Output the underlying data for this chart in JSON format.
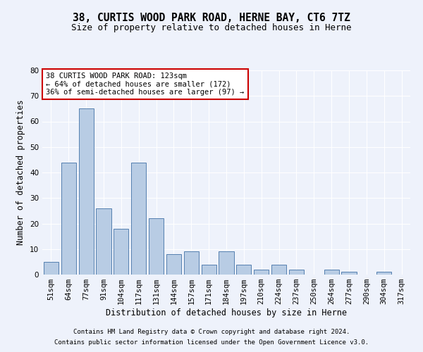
{
  "title1": "38, CURTIS WOOD PARK ROAD, HERNE BAY, CT6 7TZ",
  "title2": "Size of property relative to detached houses in Herne",
  "xlabel": "Distribution of detached houses by size in Herne",
  "ylabel": "Number of detached properties",
  "categories": [
    "51sqm",
    "64sqm",
    "77sqm",
    "91sqm",
    "104sqm",
    "117sqm",
    "131sqm",
    "144sqm",
    "157sqm",
    "171sqm",
    "184sqm",
    "197sqm",
    "210sqm",
    "224sqm",
    "237sqm",
    "250sqm",
    "264sqm",
    "277sqm",
    "290sqm",
    "304sqm",
    "317sqm"
  ],
  "values": [
    5,
    44,
    65,
    26,
    18,
    44,
    22,
    8,
    9,
    4,
    9,
    4,
    2,
    4,
    2,
    0,
    2,
    1,
    0,
    1,
    0
  ],
  "bar_color": "#b8cce4",
  "bar_edge_color": "#5580b0",
  "background_color": "#eef2fb",
  "grid_color": "#ffffff",
  "annotation_text": "38 CURTIS WOOD PARK ROAD: 123sqm\n← 64% of detached houses are smaller (172)\n36% of semi-detached houses are larger (97) →",
  "annotation_box_color": "#ffffff",
  "annotation_box_edge": "#cc0000",
  "ylim": [
    0,
    80
  ],
  "yticks": [
    0,
    10,
    20,
    30,
    40,
    50,
    60,
    70,
    80
  ],
  "footer1": "Contains HM Land Registry data © Crown copyright and database right 2024.",
  "footer2": "Contains public sector information licensed under the Open Government Licence v3.0.",
  "title_fontsize": 10.5,
  "subtitle_fontsize": 9,
  "axis_label_fontsize": 8.5,
  "tick_fontsize": 7.5,
  "annotation_fontsize": 7.5,
  "footer_fontsize": 6.5
}
